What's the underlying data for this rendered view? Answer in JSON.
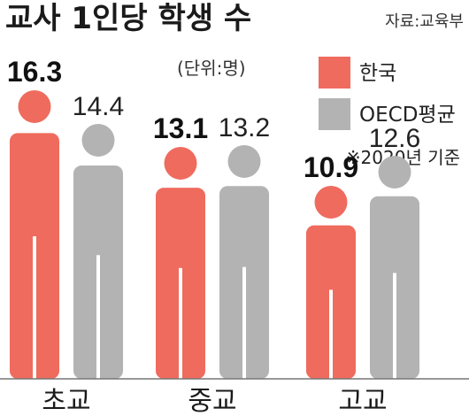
{
  "chart_data": {
    "type": "bar",
    "title": "교사 1인당 학생 수",
    "source": "자료:교육부",
    "unit": "(단위:명)",
    "note": "※2020년 기준",
    "categories": [
      "초교",
      "중교",
      "고교"
    ],
    "series": [
      {
        "name": "한국",
        "values": [
          16.3,
          13.1,
          10.9
        ],
        "color": "#ef6b5e"
      },
      {
        "name": "OECD평균",
        "values": [
          14.4,
          13.2,
          12.6
        ],
        "color": "#b3b3b3"
      }
    ],
    "ylim": [
      0,
      18
    ],
    "grid": false,
    "legend_position": "top-right",
    "mark_shape": "person-icon"
  }
}
